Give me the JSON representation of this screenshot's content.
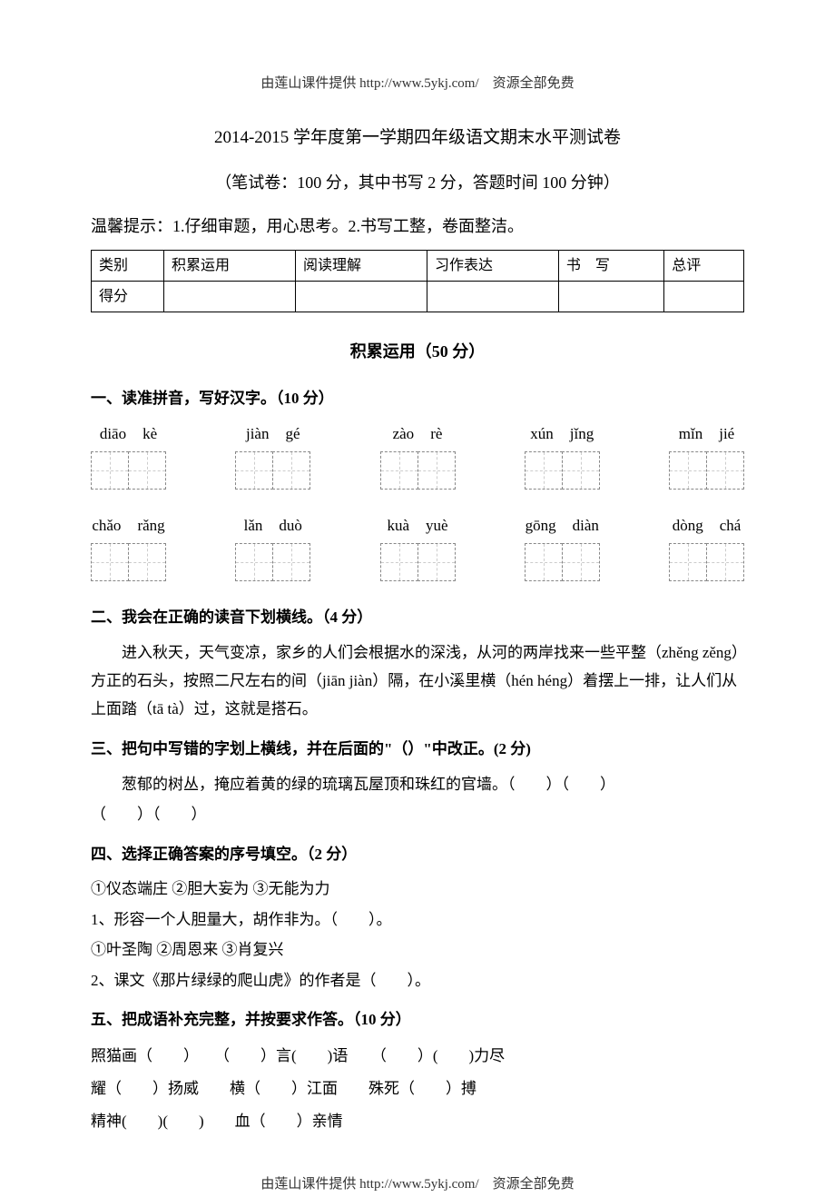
{
  "header_note": "由莲山课件提供 http://www.5ykj.com/　资源全部免费",
  "footer_note": "由莲山课件提供 http://www.5ykj.com/　资源全部免费",
  "title": "2014-2015 学年度第一学期四年级语文期末水平测试卷",
  "subtitle": "（笔试卷：100 分，其中书写 2 分，答题时间 100 分钟）",
  "tip": "温馨提示：1.仔细审题，用心思考。2.书写工整，卷面整洁。",
  "score_table": {
    "columns": [
      "类别",
      "积累运用",
      "阅读理解",
      "习作表达",
      "书　写",
      "总评"
    ],
    "row2_label": "得分"
  },
  "section1_title": "积累运用（50 分）",
  "q1": {
    "heading": "一、读准拼音，写好汉字。（10 分）",
    "row1": [
      {
        "a": "diāo",
        "b": "kè"
      },
      {
        "a": "jiàn",
        "b": "gé"
      },
      {
        "a": "zào",
        "b": "rè"
      },
      {
        "a": "xún",
        "b": "jǐng"
      },
      {
        "a": "mǐn",
        "b": "jié"
      }
    ],
    "row2": [
      {
        "a": "chǎo",
        "b": "rǎng"
      },
      {
        "a": "lǎn",
        "b": "duò"
      },
      {
        "a": "kuà",
        "b": "yuè"
      },
      {
        "a": "gōng",
        "b": "diàn"
      },
      {
        "a": "dòng",
        "b": "chá"
      }
    ]
  },
  "q2": {
    "heading": "二、我会在正确的读音下划横线。（4 分）",
    "text": "　　进入秋天，天气变凉，家乡的人们会根据水的深浅，从河的两岸找来一些平整（zhěng zěng）方正的石头，按照二尺左右的间（jiān jiàn）隔，在小溪里横（hén héng）着摆上一排，让人们从上面踏（tā tà）过，这就是搭石。"
  },
  "q3": {
    "heading": "三、把句中写错的字划上横线，并在后面的\"（）\"中改正。(2 分)",
    "line1": "　　葱郁的树丛，掩应着黄的绿的琉璃瓦屋顶和珠红的官墙。（　　）（　　）",
    "line2": "（　　）（　　）"
  },
  "q4": {
    "heading": "四、选择正确答案的序号填空。（2 分）",
    "opts1": "①仪态端庄 ②胆大妄为 ③无能为力",
    "item1": "1、形容一个人胆量大，胡作非为。（　　）。",
    "opts2": "①叶圣陶 ②周恩来 ③肖复兴",
    "item2": "2、课文《那片绿绿的爬山虎》的作者是（　　）。"
  },
  "q5": {
    "heading": "五、把成语补充完整，并按要求作答。（10 分）",
    "l1": "照猫画（　　）　　（　　）言(　　)语　　（　　）(　　)力尽",
    "l2": "耀（　　）扬威　　横（　　）江面　　殊死（　　）搏",
    "l3": "精神(　　)(　　)　　血（　　）亲情"
  }
}
